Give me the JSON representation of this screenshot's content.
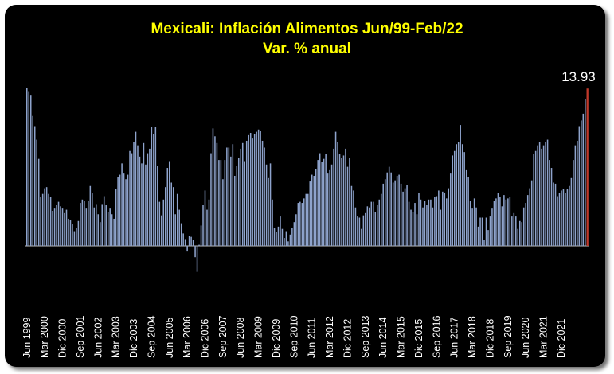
{
  "chart_data": {
    "type": "bar",
    "title": "Mexicali: Inflación Alimentos Jun/99-Feb/22",
    "subtitle": "Var. % anual",
    "xlabel": "",
    "ylabel": "",
    "ylim": [
      -2.5,
      14.5
    ],
    "grid": false,
    "legend": "none",
    "start_period": "1999-06",
    "end_period": "2022-02",
    "tick_labels": [
      "Jun 1999",
      "Mar 2000",
      "Dic 2000",
      "Sep 2001",
      "Jun 2002",
      "Mar 2003",
      "Dic 2003",
      "Sep 2004",
      "Jun 2005",
      "Mar 2006",
      "Dic 2006",
      "Sep 2007",
      "Jun 2008",
      "Mar 2009",
      "Dic 2009",
      "Sep 2010",
      "Jun 2011",
      "Mar 2012",
      "Dic 2012",
      "Sep 2013",
      "Jun 2014",
      "Mar 2015",
      "Dic 2015",
      "Sep 2016",
      "Jun 2017",
      "Mar 2018",
      "Dic 2018",
      "Sep 2019",
      "Jun 2020",
      "Mar 2021",
      "Dic 2021"
    ],
    "annotation": {
      "label": "13.93"
    },
    "colors": {
      "bars": "#8ea3cc",
      "last_bar": "#c0392b",
      "title": "#ffff00",
      "background": "#000000",
      "text": "#ffffff"
    },
    "values": [
      14.0,
      13.7,
      13.3,
      11.5,
      10.6,
      9.4,
      7.7,
      4.3,
      4.6,
      5.1,
      5.2,
      4.6,
      4.3,
      3.1,
      3.3,
      3.6,
      3.9,
      3.5,
      3.3,
      2.9,
      3.2,
      2.4,
      2.3,
      1.9,
      1.3,
      1.6,
      2.2,
      3.8,
      4.1,
      4.0,
      3.3,
      4.0,
      5.3,
      4.7,
      3.4,
      3.7,
      2.8,
      2.1,
      3.7,
      4.4,
      3.6,
      3.0,
      3.3,
      2.8,
      2.4,
      5.0,
      6.1,
      6.3,
      7.3,
      6.4,
      5.9,
      6.3,
      8.4,
      8.2,
      9.2,
      10.1,
      8.9,
      7.9,
      7.3,
      9.1,
      7.2,
      8.2,
      8.6,
      10.5,
      9.9,
      10.5,
      7.1,
      3.9,
      2.7,
      4.1,
      5.2,
      6.9,
      7.5,
      5.6,
      5.2,
      2.8,
      4.6,
      3.2,
      2.0,
      1.1,
      0.6,
      -0.5,
      0.9,
      0.8,
      0.5,
      -1.0,
      -2.3,
      0.1,
      1.8,
      3.6,
      4.9,
      3.2,
      4.1,
      8.2,
      10.4,
      9.7,
      9.1,
      7.6,
      7.6,
      5.9,
      7.6,
      8.7,
      8.7,
      7.9,
      9.0,
      6.2,
      7.1,
      7.8,
      8.6,
      9.1,
      7.5,
      9.3,
      9.8,
      10.0,
      9.5,
      9.9,
      10.1,
      10.3,
      10.2,
      9.3,
      8.7,
      7.2,
      6.0,
      7.3,
      4.1,
      1.6,
      1.2,
      1.7,
      2.6,
      1.5,
      0.7,
      1.3,
      0.4,
      1.0,
      1.6,
      2.1,
      2.8,
      3.8,
      3.9,
      3.8,
      4.2,
      4.6,
      4.6,
      5.7,
      6.3,
      6.2,
      6.8,
      7.6,
      8.2,
      7.4,
      7.7,
      8.1,
      6.4,
      6.7,
      7.2,
      8.6,
      10.1,
      9.2,
      8.1,
      7.8,
      8.0,
      8.6,
      7.0,
      7.8,
      5.3,
      4.9,
      3.4,
      2.6,
      2.5,
      1.5,
      2.7,
      2.9,
      3.5,
      3.4,
      3.9,
      3.9,
      3.0,
      3.6,
      4.1,
      4.6,
      5.5,
      5.9,
      6.5,
      7.0,
      6.5,
      5.6,
      5.8,
      6.2,
      6.3,
      5.5,
      4.8,
      5.1,
      5.4,
      3.9,
      3.2,
      3.0,
      3.8,
      2.8,
      4.7,
      4.1,
      3.4,
      4.0,
      3.6,
      4.1,
      4.1,
      3.4,
      4.3,
      4.4,
      4.9,
      3.2,
      4.8,
      4.7,
      4.2,
      5.1,
      6.4,
      8.0,
      8.4,
      9.0,
      9.2,
      10.7,
      9.0,
      8.3,
      6.7,
      6.1,
      4.0,
      3.3,
      4.2,
      3.4,
      1.7,
      2.5,
      2.5,
      0.5,
      2.5,
      1.4,
      2.6,
      3.3,
      4.0,
      4.2,
      4.7,
      4.3,
      3.5,
      4.5,
      4.1,
      4.2,
      4.3,
      2.6,
      2.9,
      2.6,
      1.5,
      2.2,
      2.1,
      3.4,
      3.8,
      4.5,
      5.1,
      5.8,
      8.1,
      8.4,
      8.9,
      9.2,
      8.6,
      8.9,
      9.2,
      9.4,
      7.6,
      6.9,
      5.6,
      5.5,
      4.4,
      4.7,
      4.9,
      5.0,
      4.7,
      5.0,
      5.3,
      6.0,
      7.6,
      8.9,
      9.3,
      10.6,
      11.1,
      11.7,
      13.0,
      13.93
    ]
  }
}
